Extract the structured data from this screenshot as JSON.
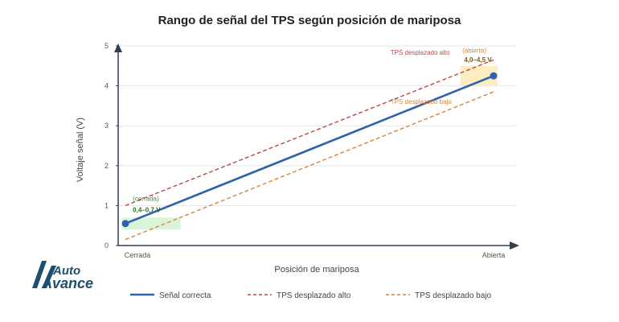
{
  "chart_data": {
    "type": "line",
    "title": "Rango de señal del TPS según posición de mariposa",
    "xlabel": "Posición de mariposa",
    "ylabel": "Voltaje señal (V)",
    "x": [
      0,
      1
    ],
    "x_tick_labels": [
      "Cerrada",
      "Abierta"
    ],
    "yticks": [
      0,
      1,
      2,
      3,
      4,
      5
    ],
    "ylim": [
      0,
      5
    ],
    "grid": true,
    "legend_position": "bottom",
    "series": [
      {
        "name": "Señal correcta",
        "values": [
          0.55,
          4.25
        ],
        "color": "#2f62ad",
        "style": "solid",
        "markers": true
      },
      {
        "name": "TPS desplazado alto",
        "values": [
          1.0,
          4.65
        ],
        "color": "#b94a4a",
        "style": "dashed",
        "markers": false
      },
      {
        "name": "TPS desplazado bajo",
        "values": [
          0.15,
          3.85
        ],
        "color": "#d9843a",
        "style": "dashed",
        "markers": false
      }
    ],
    "bands": [
      {
        "x_from": -0.01,
        "x_to": 0.15,
        "y_from": 0.4,
        "y_to": 0.7,
        "color": "#d9f5d9"
      },
      {
        "x_from": 0.91,
        "x_to": 1.01,
        "y_from": 4.0,
        "y_to": 4.5,
        "color": "#fdedc0"
      }
    ],
    "annotations": [
      {
        "id": "cerrada",
        "text": "(cerrada)",
        "x": 0.02,
        "y": 1.12,
        "color": "#4a8a4a",
        "weight": "normal"
      },
      {
        "id": "rango-cerrada",
        "text": "0,4–0,7 V",
        "x": 0.02,
        "y": 0.84,
        "color": "#2e6b2e",
        "weight": "bold"
      },
      {
        "id": "desplazado-alto",
        "text": "TPS desplazado alto",
        "x": 0.72,
        "y": 4.78,
        "color": "#b94a4a",
        "weight": "normal"
      },
      {
        "id": "abierta",
        "text": "(abierta)",
        "x": 0.915,
        "y": 4.83,
        "color": "#c98a2e",
        "weight": "normal"
      },
      {
        "id": "rango-abierta",
        "text": "4,0–4,5 V",
        "x": 0.92,
        "y": 4.6,
        "color": "#7a5a10",
        "weight": "bold"
      },
      {
        "id": "desplazado-bajo",
        "text": "TPS desplazado bajo",
        "x": 0.72,
        "y": 3.55,
        "color": "#d9843a",
        "weight": "normal"
      }
    ]
  },
  "logo": {
    "line1": "Auto",
    "line2": "Avance"
  },
  "colors": {
    "axis": "#333e50",
    "grid": "#e6e6e6",
    "logo": "#1d4f6e"
  }
}
